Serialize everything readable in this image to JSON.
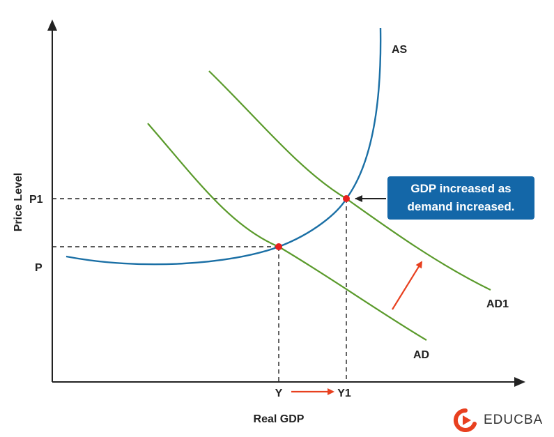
{
  "diagram": {
    "y_axis_label": "Price Level",
    "x_axis_label": "Real GDP",
    "price_labels": [
      "P1",
      "P"
    ],
    "output_labels": [
      "Y",
      "Y1"
    ],
    "curves": {
      "as": "AS",
      "ad": "AD",
      "ad1": "AD1"
    },
    "callout_lines": [
      "GDP increased as",
      "demand increased."
    ],
    "colors": {
      "as_curve": "#1a6fa5",
      "ad_curves": "#5a9a2b",
      "equilibrium_points": "#e8201f",
      "shift_arrows": "#e8401f",
      "callout_bg": "#1467a8",
      "guides": "#222222"
    }
  },
  "brand": {
    "name": "EDUCBA",
    "logo_icon": "educba-play-logo-icon"
  }
}
